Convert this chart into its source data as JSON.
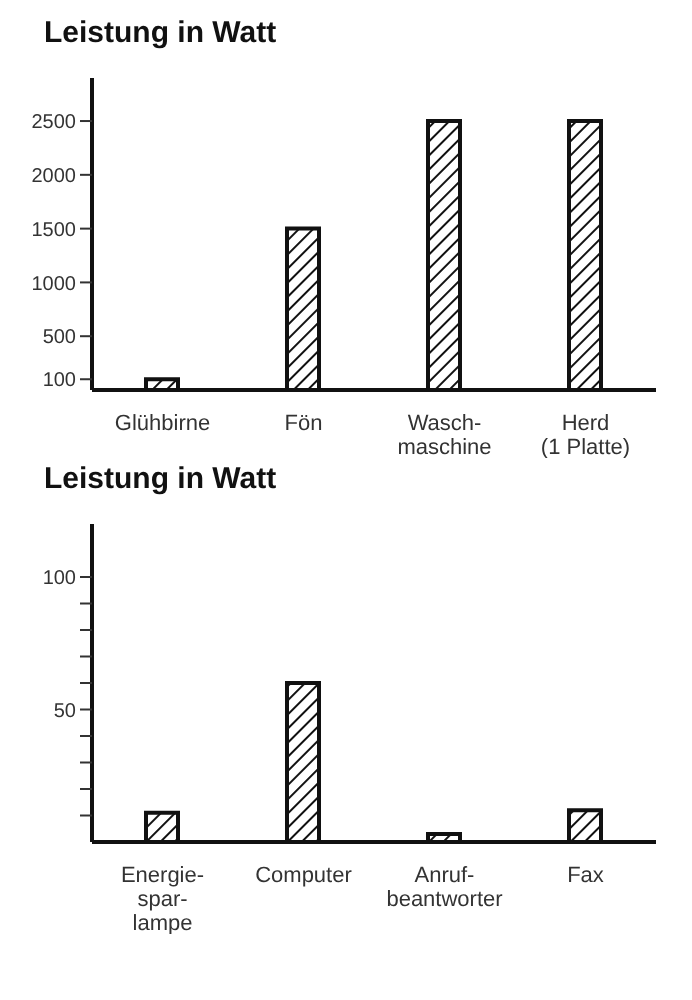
{
  "chart_data": [
    {
      "type": "bar",
      "ylabel": "Leistung in Watt",
      "categories": [
        "Glühbirne",
        "Fön",
        "Wasch-\nmaschine",
        "Herd\n(1 Platte)"
      ],
      "values": [
        100,
        1500,
        2500,
        2500
      ],
      "color": "#111111",
      "ylim": [
        0,
        2900
      ],
      "yticks": [
        100,
        500,
        1000,
        1500,
        2000,
        2500
      ],
      "grid": false,
      "legend": false
    },
    {
      "type": "bar",
      "ylabel": "Leistung in Watt",
      "categories": [
        "Energie-\nspar-\nlampe",
        "Computer",
        "Anruf-\nbeantworter",
        "Fax"
      ],
      "values": [
        11,
        60,
        3,
        12
      ],
      "color": "#111111",
      "ylim": [
        0,
        120
      ],
      "yticks": [
        {
          "value": 10,
          "label": null
        },
        {
          "value": 20,
          "label": null
        },
        {
          "value": 30,
          "label": null
        },
        {
          "value": 40,
          "label": null
        },
        50,
        {
          "value": 60,
          "label": null
        },
        {
          "value": 70,
          "label": null
        },
        {
          "value": 80,
          "label": null
        },
        {
          "value": 90,
          "label": null
        },
        100
      ],
      "grid": false,
      "legend": false
    }
  ]
}
